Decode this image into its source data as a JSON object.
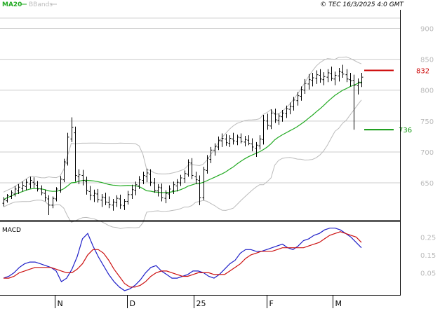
{
  "header": {
    "legend": [
      {
        "label": "MA20",
        "color": "#22aa22"
      },
      {
        "label": "BBands",
        "color": "#bbbbbb"
      }
    ],
    "copyright": "© TEC 16/3/2025 4:0 GMT"
  },
  "colors": {
    "ma20": "#22aa22",
    "bbands": "#bbbbbb",
    "candle": "#000000",
    "macd": "#1f1fc8",
    "signal": "#cc1111",
    "resistance": "#cc0000",
    "support": "#119911",
    "grid": "#cccccc",
    "axis_label": "#bbbbbb"
  },
  "chart_data": [
    {
      "type": "candlestick",
      "title": "",
      "y_ticks": [
        650,
        700,
        750,
        800,
        850,
        900
      ],
      "ylim": [
        590,
        930
      ],
      "x_ticks": [
        "N",
        "D",
        "25",
        "F",
        "M"
      ],
      "grid": true,
      "levels": [
        {
          "label": "832",
          "value": 832,
          "kind": "resistance"
        },
        {
          "label": "736",
          "value": 736,
          "kind": "support"
        }
      ],
      "ohlc": [
        [
          617,
          627,
          612,
          623
        ],
        [
          621,
          632,
          618,
          629
        ],
        [
          628,
          638,
          624,
          634
        ],
        [
          632,
          645,
          628,
          640
        ],
        [
          637,
          648,
          632,
          643
        ],
        [
          641,
          652,
          636,
          646
        ],
        [
          644,
          656,
          638,
          651
        ],
        [
          648,
          660,
          641,
          654
        ],
        [
          651,
          659,
          642,
          648
        ],
        [
          646,
          653,
          636,
          640
        ],
        [
          640,
          646,
          630,
          634
        ],
        [
          633,
          639,
          620,
          626
        ],
        [
          624,
          630,
          598,
          614
        ],
        [
          614,
          628,
          609,
          625
        ],
        [
          624,
          643,
          620,
          640
        ],
        [
          638,
          661,
          634,
          656
        ],
        [
          655,
          689,
          651,
          684
        ],
        [
          682,
          731,
          678,
          724
        ],
        [
          721,
          756,
          716,
          740
        ],
        [
          731,
          741,
          652,
          662
        ],
        [
          660,
          672,
          648,
          663
        ],
        [
          662,
          671,
          646,
          654
        ],
        [
          652,
          660,
          631,
          638
        ],
        [
          636,
          645,
          622,
          630
        ],
        [
          629,
          639,
          619,
          633
        ],
        [
          632,
          640,
          618,
          623
        ],
        [
          622,
          632,
          611,
          627
        ],
        [
          626,
          634,
          614,
          619
        ],
        [
          618,
          628,
          609,
          615
        ],
        [
          614,
          624,
          605,
          619
        ],
        [
          618,
          630,
          611,
          625
        ],
        [
          624,
          631,
          608,
          614
        ],
        [
          613,
          624,
          606,
          620
        ],
        [
          620,
          637,
          615,
          631
        ],
        [
          631,
          647,
          624,
          639
        ],
        [
          638,
          652,
          630,
          647
        ],
        [
          645,
          661,
          640,
          655
        ],
        [
          654,
          668,
          648,
          662
        ],
        [
          660,
          673,
          651,
          666
        ],
        [
          664,
          672,
          645,
          651
        ],
        [
          650,
          658,
          634,
          638
        ],
        [
          637,
          648,
          628,
          643
        ],
        [
          642,
          649,
          620,
          626
        ],
        [
          625,
          638,
          617,
          633
        ],
        [
          632,
          646,
          624,
          640
        ],
        [
          638,
          652,
          632,
          647
        ],
        [
          645,
          656,
          636,
          651
        ],
        [
          650,
          663,
          645,
          658
        ],
        [
          657,
          670,
          650,
          665
        ],
        [
          664,
          688,
          660,
          683
        ],
        [
          682,
          690,
          656,
          662
        ],
        [
          660,
          668,
          648,
          655
        ],
        [
          654,
          662,
          614,
          626
        ],
        [
          626,
          676,
          622,
          671
        ],
        [
          670,
          695,
          665,
          690
        ],
        [
          688,
          708,
          682,
          703
        ],
        [
          702,
          714,
          694,
          709
        ],
        [
          708,
          725,
          703,
          719
        ],
        [
          718,
          730,
          708,
          722
        ],
        [
          721,
          729,
          710,
          715
        ],
        [
          714,
          727,
          708,
          722
        ],
        [
          721,
          731,
          712,
          718
        ],
        [
          717,
          728,
          711,
          724
        ],
        [
          723,
          730,
          714,
          717
        ],
        [
          716,
          726,
          709,
          720
        ],
        [
          719,
          727,
          711,
          714
        ],
        [
          713,
          722,
          701,
          708
        ],
        [
          706,
          716,
          692,
          711
        ],
        [
          710,
          727,
          704,
          721
        ],
        [
          720,
          760,
          712,
          751
        ],
        [
          750,
          762,
          736,
          743
        ],
        [
          742,
          769,
          737,
          763
        ],
        [
          762,
          770,
          747,
          752
        ],
        [
          751,
          762,
          744,
          758
        ],
        [
          757,
          768,
          749,
          763
        ],
        [
          762,
          775,
          755,
          770
        ],
        [
          769,
          780,
          761,
          774
        ],
        [
          773,
          789,
          767,
          784
        ],
        [
          783,
          797,
          775,
          791
        ],
        [
          790,
          806,
          783,
          801
        ],
        [
          800,
          818,
          794,
          811
        ],
        [
          810,
          826,
          801,
          817
        ],
        [
          816,
          828,
          806,
          820
        ],
        [
          819,
          832,
          810,
          825
        ],
        [
          824,
          834,
          812,
          818
        ],
        [
          817,
          829,
          808,
          822
        ],
        [
          821,
          834,
          813,
          828
        ],
        [
          827,
          838,
          815,
          819
        ],
        [
          818,
          830,
          808,
          824
        ],
        [
          823,
          836,
          814,
          830
        ],
        [
          829,
          841,
          820,
          826
        ],
        [
          825,
          834,
          813,
          818
        ],
        [
          817,
          828,
          806,
          815
        ],
        [
          816,
          825,
          736,
          808
        ],
        [
          807,
          819,
          793,
          813
        ],
        [
          812,
          828,
          805,
          821
        ]
      ]
    },
    {
      "type": "line",
      "title": "MACD",
      "y_ticks": [
        0.05,
        0.15,
        0.25
      ],
      "ylim": [
        -0.07,
        0.33
      ],
      "grid": false,
      "series": [
        {
          "values": [
            0.02,
            0.03,
            0.05,
            0.08,
            0.1,
            0.11,
            0.11,
            0.1,
            0.09,
            0.08,
            0.06,
            0.0,
            0.02,
            0.07,
            0.14,
            0.24,
            0.27,
            0.2,
            0.14,
            0.09,
            0.04,
            0.0,
            -0.03,
            -0.05,
            -0.04,
            -0.02,
            0.01,
            0.05,
            0.08,
            0.09,
            0.06,
            0.04,
            0.02,
            0.02,
            0.03,
            0.04,
            0.06,
            0.06,
            0.05,
            0.03,
            0.02,
            0.04,
            0.07,
            0.1,
            0.12,
            0.16,
            0.18,
            0.18,
            0.17,
            0.17,
            0.18,
            0.19,
            0.2,
            0.21,
            0.19,
            0.18,
            0.2,
            0.23,
            0.24,
            0.26,
            0.27,
            0.29,
            0.3,
            0.3,
            0.29,
            0.27,
            0.25,
            0.22,
            0.19
          ]
        },
        {
          "values": [
            0.02,
            0.02,
            0.03,
            0.05,
            0.06,
            0.07,
            0.08,
            0.08,
            0.08,
            0.08,
            0.07,
            0.06,
            0.05,
            0.05,
            0.07,
            0.1,
            0.15,
            0.18,
            0.18,
            0.16,
            0.12,
            0.07,
            0.03,
            -0.01,
            -0.03,
            -0.03,
            -0.02,
            0.0,
            0.03,
            0.05,
            0.06,
            0.06,
            0.05,
            0.04,
            0.03,
            0.03,
            0.04,
            0.05,
            0.05,
            0.05,
            0.04,
            0.04,
            0.04,
            0.06,
            0.08,
            0.1,
            0.13,
            0.15,
            0.16,
            0.17,
            0.17,
            0.17,
            0.18,
            0.19,
            0.19,
            0.19,
            0.19,
            0.19,
            0.2,
            0.21,
            0.22,
            0.24,
            0.26,
            0.27,
            0.28,
            0.27,
            0.26,
            0.25,
            0.22
          ]
        }
      ]
    }
  ]
}
